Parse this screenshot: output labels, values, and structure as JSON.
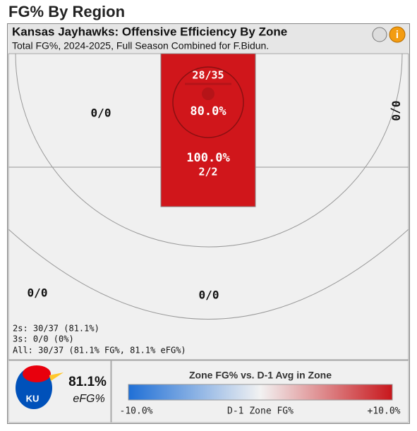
{
  "page_title": "FG% By Region",
  "header": {
    "title": "Kansas Jayhawks: Offensive Efficiency By Zone",
    "subtitle": "Total FG%, 2024-2025, Full Season Combined for F.Bidun.",
    "info_icon": "i"
  },
  "zones": {
    "restricted": {
      "made_attempts": "28/35",
      "pct": "80.0%"
    },
    "paint": {
      "pct": "100.0%",
      "made_attempts": "2/2"
    },
    "left_mid": "0/0",
    "right_corner_mid": "0/0",
    "left_three": "0/0",
    "top_three": "0/0"
  },
  "stats": [
    "2s: 30/37 (81.1%)",
    "3s: 0/0 (0%)",
    "All: 30/37 (81.1% FG%, 81.1% eFG%)"
  ],
  "summary": {
    "value": "81.1%",
    "label": "eFG%",
    "logo_text": "KU"
  },
  "legend": {
    "title": "Zone FG% vs. D-1 Avg in Zone",
    "min_label": "-10.0%",
    "center_label": "D-1 Zone FG%",
    "max_label": "+10.0%"
  }
}
